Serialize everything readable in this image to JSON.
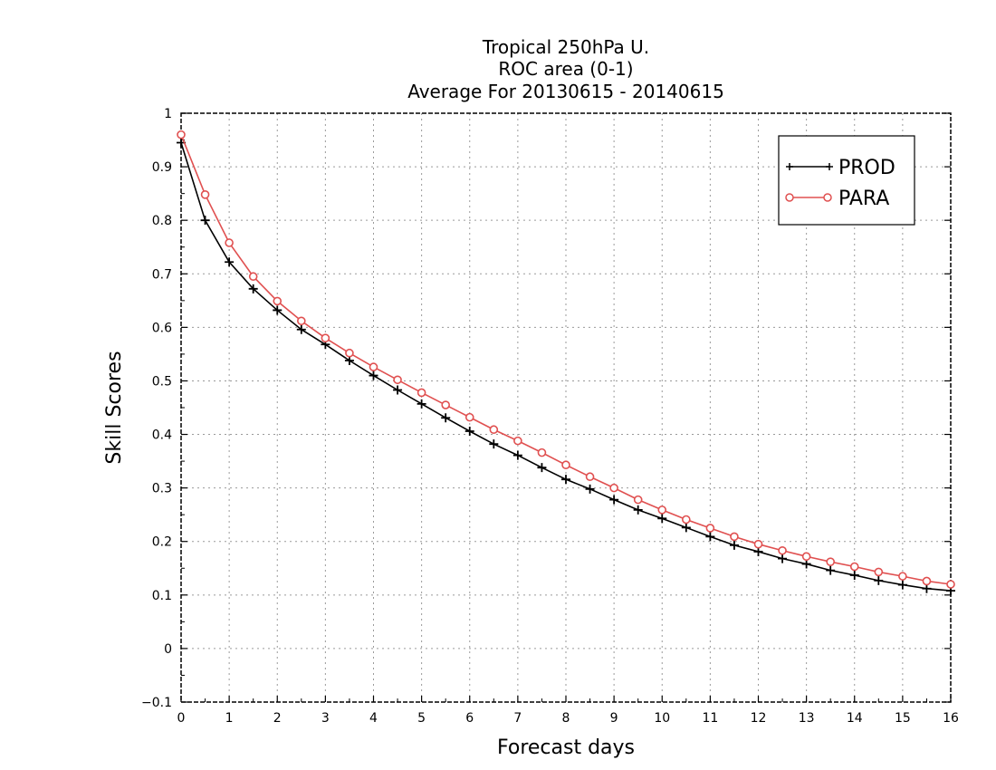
{
  "chart_data": {
    "type": "line",
    "title_lines": [
      "Tropical 250hPa U.",
      "ROC area (0-1)",
      "Average For 20130615 - 20140615"
    ],
    "xlabel": "Forecast days",
    "ylabel": "Skill Scores",
    "xlim": [
      0,
      16
    ],
    "ylim": [
      -0.1,
      1
    ],
    "x_ticks": [
      "0",
      "1",
      "2",
      "3",
      "4",
      "5",
      "6",
      "7",
      "8",
      "9",
      "10",
      "11",
      "12",
      "13",
      "14",
      "15",
      "16"
    ],
    "y_ticks": [
      "−0.1",
      "0",
      "0.1",
      "0.2",
      "0.3",
      "0.4",
      "0.5",
      "0.6",
      "0.7",
      "0.8",
      "0.9",
      "1"
    ],
    "grid": true,
    "legend_position": "top-right",
    "x": [
      0,
      0.5,
      1,
      1.5,
      2,
      2.5,
      3,
      3.5,
      4,
      4.5,
      5,
      5.5,
      6,
      6.5,
      7,
      7.5,
      8,
      8.5,
      9,
      9.5,
      10,
      10.5,
      11,
      11.5,
      12,
      12.5,
      13,
      13.5,
      14,
      14.5,
      15,
      15.5,
      16
    ],
    "series": [
      {
        "name": "PROD",
        "color": "#000000",
        "marker": "plus",
        "values": [
          0.945,
          0.8,
          0.722,
          0.672,
          0.632,
          0.596,
          0.568,
          0.538,
          0.51,
          0.483,
          0.457,
          0.431,
          0.406,
          0.382,
          0.361,
          0.338,
          0.316,
          0.298,
          0.278,
          0.259,
          0.243,
          0.226,
          0.209,
          0.193,
          0.181,
          0.168,
          0.158,
          0.146,
          0.137,
          0.127,
          0.119,
          0.112,
          0.108
        ]
      },
      {
        "name": "PARA",
        "color": "#e05050",
        "marker": "circle",
        "values": [
          0.96,
          0.848,
          0.758,
          0.695,
          0.649,
          0.612,
          0.58,
          0.552,
          0.526,
          0.502,
          0.478,
          0.455,
          0.432,
          0.409,
          0.388,
          0.366,
          0.343,
          0.321,
          0.3,
          0.278,
          0.259,
          0.241,
          0.225,
          0.209,
          0.195,
          0.183,
          0.172,
          0.162,
          0.153,
          0.143,
          0.135,
          0.126,
          0.12
        ]
      }
    ]
  }
}
